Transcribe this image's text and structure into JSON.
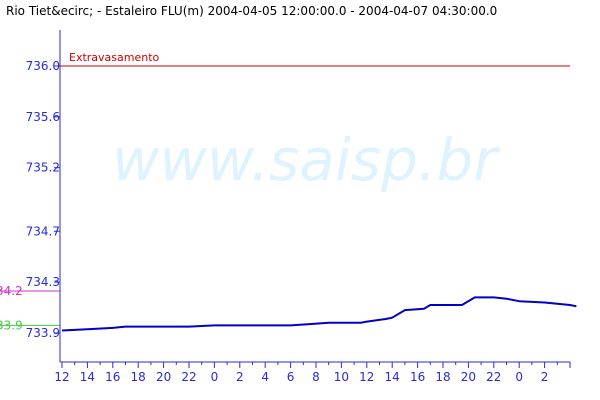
{
  "header": {
    "title": "Rio Tiet&ecirc; - Estaleiro FLU(m) 2004-04-05 12:00:00.0 - 2004-04-07 04:30:00.0"
  },
  "watermark": "www.saisp.br",
  "colors": {
    "axis": "#2a2ad6",
    "series": "#0000c8",
    "threshold": "#cc0000",
    "ref_magenta": "#cc33cc",
    "ref_green": "#44cc44",
    "watermark": "#dff3ff"
  },
  "chart_data": {
    "type": "line",
    "title": "Rio Tiet&ecirc; - Estaleiro FLU(m) 2004-04-05 12:00:00.0 - 2004-04-07 04:30:00.0",
    "xlabel": "",
    "ylabel": "",
    "x_start": "2004-04-05 12:00:00.0",
    "x_end": "2004-04-07 04:30:00.0",
    "x_tick_labels": [
      "12",
      "14",
      "16",
      "18",
      "20",
      "22",
      "0",
      "2",
      "4",
      "6",
      "8",
      "10",
      "12",
      "14",
      "16",
      "18",
      "20",
      "22",
      "0",
      "2"
    ],
    "y_ticks": [
      {
        "value": 736.0,
        "label": "736.0"
      },
      {
        "value": 735.6,
        "label": "735.6"
      },
      {
        "value": 735.2,
        "label": "735.2"
      },
      {
        "value": 734.7,
        "label": "734.7"
      },
      {
        "value": 734.3,
        "label": "734.3"
      },
      {
        "value": 733.9,
        "label": "733.9"
      }
    ],
    "ylim": [
      733.8,
      736.5
    ],
    "grid": false,
    "threshold": {
      "label": "Extravasamento",
      "value": 736.0
    },
    "reference_levels": [
      {
        "label": "34.2",
        "value": 734.23,
        "color": "#cc33cc"
      },
      {
        "label": "33.9",
        "value": 733.96,
        "color": "#44cc44"
      }
    ],
    "series": [
      {
        "x": [
          "2004-04-05 12:00",
          "2004-04-05 14:00",
          "2004-04-05 16:00",
          "2004-04-05 17:00",
          "2004-04-05 20:00",
          "2004-04-05 22:00",
          "2004-04-06 00:00",
          "2004-04-06 04:00",
          "2004-04-06 06:00",
          "2004-04-06 07:30",
          "2004-04-06 09:00",
          "2004-04-06 11:00",
          "2004-04-06 11:30",
          "2004-04-06 12:00",
          "2004-04-06 13:30",
          "2004-04-06 14:00",
          "2004-04-06 15:00",
          "2004-04-06 16:30",
          "2004-04-06 17:00",
          "2004-04-06 18:30",
          "2004-04-06 19:30",
          "2004-04-06 20:30",
          "2004-04-06 22:00",
          "2004-04-06 23:00",
          "2004-04-07 00:00",
          "2004-04-07 02:00",
          "2004-04-07 04:00",
          "2004-04-07 04:30"
        ],
        "y": [
          733.92,
          733.93,
          733.94,
          733.95,
          733.95,
          733.95,
          733.96,
          733.96,
          733.96,
          733.97,
          733.98,
          733.98,
          733.98,
          733.99,
          734.01,
          734.02,
          734.08,
          734.09,
          734.12,
          734.12,
          734.12,
          734.18,
          734.18,
          734.17,
          734.15,
          734.14,
          734.12,
          734.11
        ]
      }
    ]
  }
}
